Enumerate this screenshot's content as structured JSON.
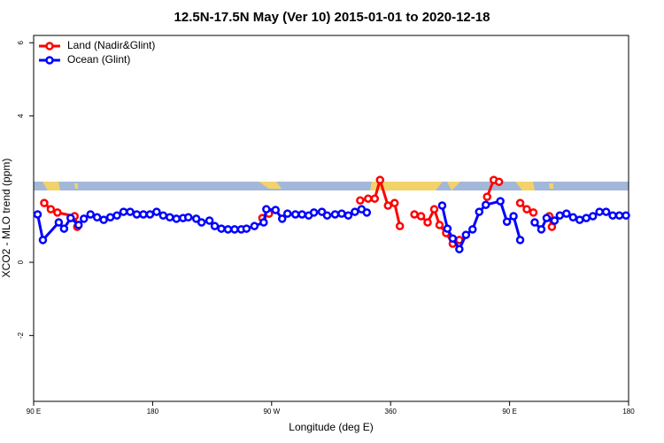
{
  "chart_data": {
    "type": "line",
    "title": "12.5N-17.5N May (Ver 10)   2015-01-01 to 2020-12-18",
    "xlabel": "Longitude (deg E)",
    "ylabel": "XCO2 - MLO trend (ppm)",
    "xlim": [
      90,
      540
    ],
    "ylim": [
      -3.8,
      6.2
    ],
    "xticks": [
      {
        "value": 90,
        "label": "90 E"
      },
      180,
      {
        "value": 270,
        "label": "90 W"
      },
      360,
      {
        "value": 450,
        "label": "90 E"
      },
      {
        "value": 540,
        "label": "180"
      }
    ],
    "yticks": [
      -2,
      0,
      4,
      6
    ],
    "legend": "top-left",
    "series": [
      {
        "name": "Land (Nadir&Glint)",
        "color": "#ff0000",
        "x": [
          98,
          103,
          108,
          121,
          123,
          null,
          263,
          268,
          null,
          337,
          343,
          348,
          352,
          358,
          363,
          367,
          null,
          378,
          383,
          388,
          393,
          397,
          402,
          407,
          412,
          null,
          433,
          438,
          442,
          null,
          458,
          463,
          468,
          null,
          480,
          482
        ],
        "values": [
          1.62,
          1.45,
          1.36,
          1.26,
          0.97,
          null,
          1.21,
          1.33,
          null,
          1.69,
          1.74,
          1.74,
          2.25,
          1.55,
          1.62,
          0.99,
          null,
          1.31,
          1.26,
          1.09,
          1.45,
          1.02,
          0.8,
          0.51,
          0.61,
          null,
          1.79,
          2.25,
          2.2,
          null,
          1.62,
          1.45,
          1.36,
          null,
          1.26,
          0.97
        ]
      },
      {
        "name": "Ocean (Glint)",
        "color": "#0000ff",
        "x": [
          93,
          97,
          109,
          113,
          118,
          124,
          128,
          133,
          138,
          143,
          148,
          153,
          158,
          163,
          168,
          173,
          178,
          183,
          188,
          193,
          198,
          203,
          207,
          213,
          217,
          223,
          227,
          232,
          237,
          242,
          247,
          251,
          257,
          264,
          266,
          273,
          278,
          282,
          288,
          293,
          298,
          302,
          308,
          312,
          318,
          323,
          328,
          333,
          338,
          342,
          null,
          399,
          403,
          407,
          412,
          417,
          422,
          427,
          432,
          443,
          448,
          453,
          458,
          null,
          469,
          474,
          478,
          484,
          488,
          493,
          498,
          503,
          508,
          513,
          518,
          523,
          528,
          533,
          538
        ],
        "values": [
          1.31,
          0.61,
          1.09,
          0.92,
          1.21,
          1.02,
          1.19,
          1.31,
          1.23,
          1.16,
          1.23,
          1.28,
          1.38,
          1.38,
          1.31,
          1.31,
          1.31,
          1.38,
          1.28,
          1.23,
          1.19,
          1.21,
          1.23,
          1.19,
          1.09,
          1.14,
          0.99,
          0.92,
          0.9,
          0.9,
          0.9,
          0.92,
          0.99,
          1.09,
          1.45,
          1.43,
          1.19,
          1.33,
          1.31,
          1.31,
          1.28,
          1.36,
          1.38,
          1.28,
          1.31,
          1.33,
          1.28,
          1.38,
          1.45,
          1.36,
          null,
          1.55,
          0.92,
          0.65,
          0.36,
          0.75,
          0.9,
          1.38,
          1.57,
          1.67,
          1.11,
          1.26,
          0.61,
          null,
          1.09,
          0.9,
          1.21,
          1.14,
          1.28,
          1.33,
          1.23,
          1.16,
          1.21,
          1.26,
          1.38,
          1.38,
          1.28,
          1.28,
          1.28
        ]
      }
    ]
  }
}
